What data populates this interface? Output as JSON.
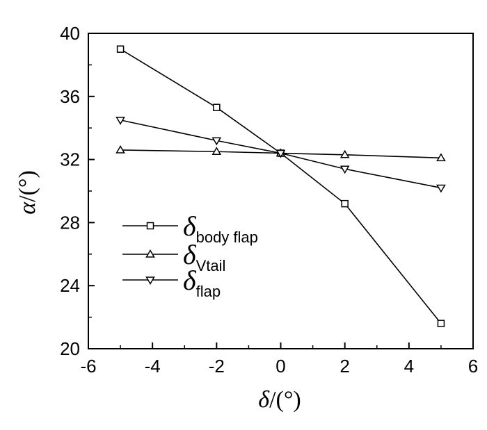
{
  "chart_data": {
    "type": "line",
    "xlabel": {
      "symbol": "δ",
      "unit": "/(°)"
    },
    "ylabel": {
      "symbol": "α",
      "unit": "/(°)"
    },
    "xlim": [
      -6,
      6
    ],
    "ylim": [
      20,
      40
    ],
    "xticks": [
      -6,
      -4,
      -2,
      0,
      2,
      4,
      6
    ],
    "yticks": [
      20,
      24,
      28,
      32,
      36,
      40
    ],
    "grid": false,
    "legend_position": "center-left",
    "series": [
      {
        "name": "δ",
        "name_sub": "body flap",
        "marker": "square",
        "x": [
          -5,
          -2,
          0,
          2,
          5
        ],
        "y": [
          39.0,
          35.3,
          32.4,
          29.2,
          21.6
        ]
      },
      {
        "name": "δ",
        "name_sub": "Vtail",
        "marker": "triangle-up",
        "x": [
          -5,
          -2,
          0,
          2,
          5
        ],
        "y": [
          32.6,
          32.5,
          32.4,
          32.3,
          32.1
        ]
      },
      {
        "name": "δ",
        "name_sub": "flap",
        "marker": "triangle-down",
        "x": [
          -5,
          -2,
          0,
          2,
          5
        ],
        "y": [
          34.5,
          33.2,
          32.4,
          31.4,
          30.2
        ]
      }
    ]
  }
}
